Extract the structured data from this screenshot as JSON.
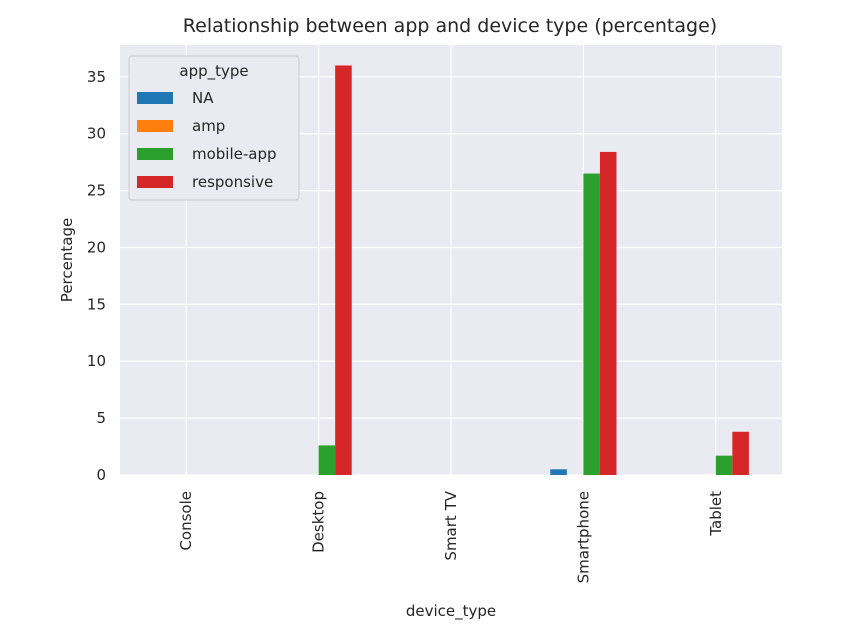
{
  "chart_data": {
    "type": "bar",
    "title": "Relationship between app and device type (percentage)",
    "xlabel": "device_type",
    "ylabel": "Percentage",
    "categories": [
      "Console",
      "Desktop",
      "Smart TV",
      "Smartphone",
      "Tablet"
    ],
    "yticks": [
      0,
      5,
      10,
      15,
      20,
      25,
      30,
      35
    ],
    "ylim": [
      0,
      37.8
    ],
    "grid": true,
    "legend": {
      "title": "app_type",
      "placement": "top-left"
    },
    "series": [
      {
        "name": "NA",
        "color": "#1f77b4",
        "values": [
          0,
          0,
          0,
          0.5,
          0
        ]
      },
      {
        "name": "amp",
        "color": "#ff7f0e",
        "values": [
          0,
          0,
          0,
          0,
          0
        ]
      },
      {
        "name": "mobile-app",
        "color": "#2ca02c",
        "values": [
          0,
          2.6,
          0,
          26.5,
          1.7
        ]
      },
      {
        "name": "responsive",
        "color": "#d62728",
        "values": [
          0,
          36.0,
          0,
          28.4,
          3.8
        ]
      }
    ]
  }
}
